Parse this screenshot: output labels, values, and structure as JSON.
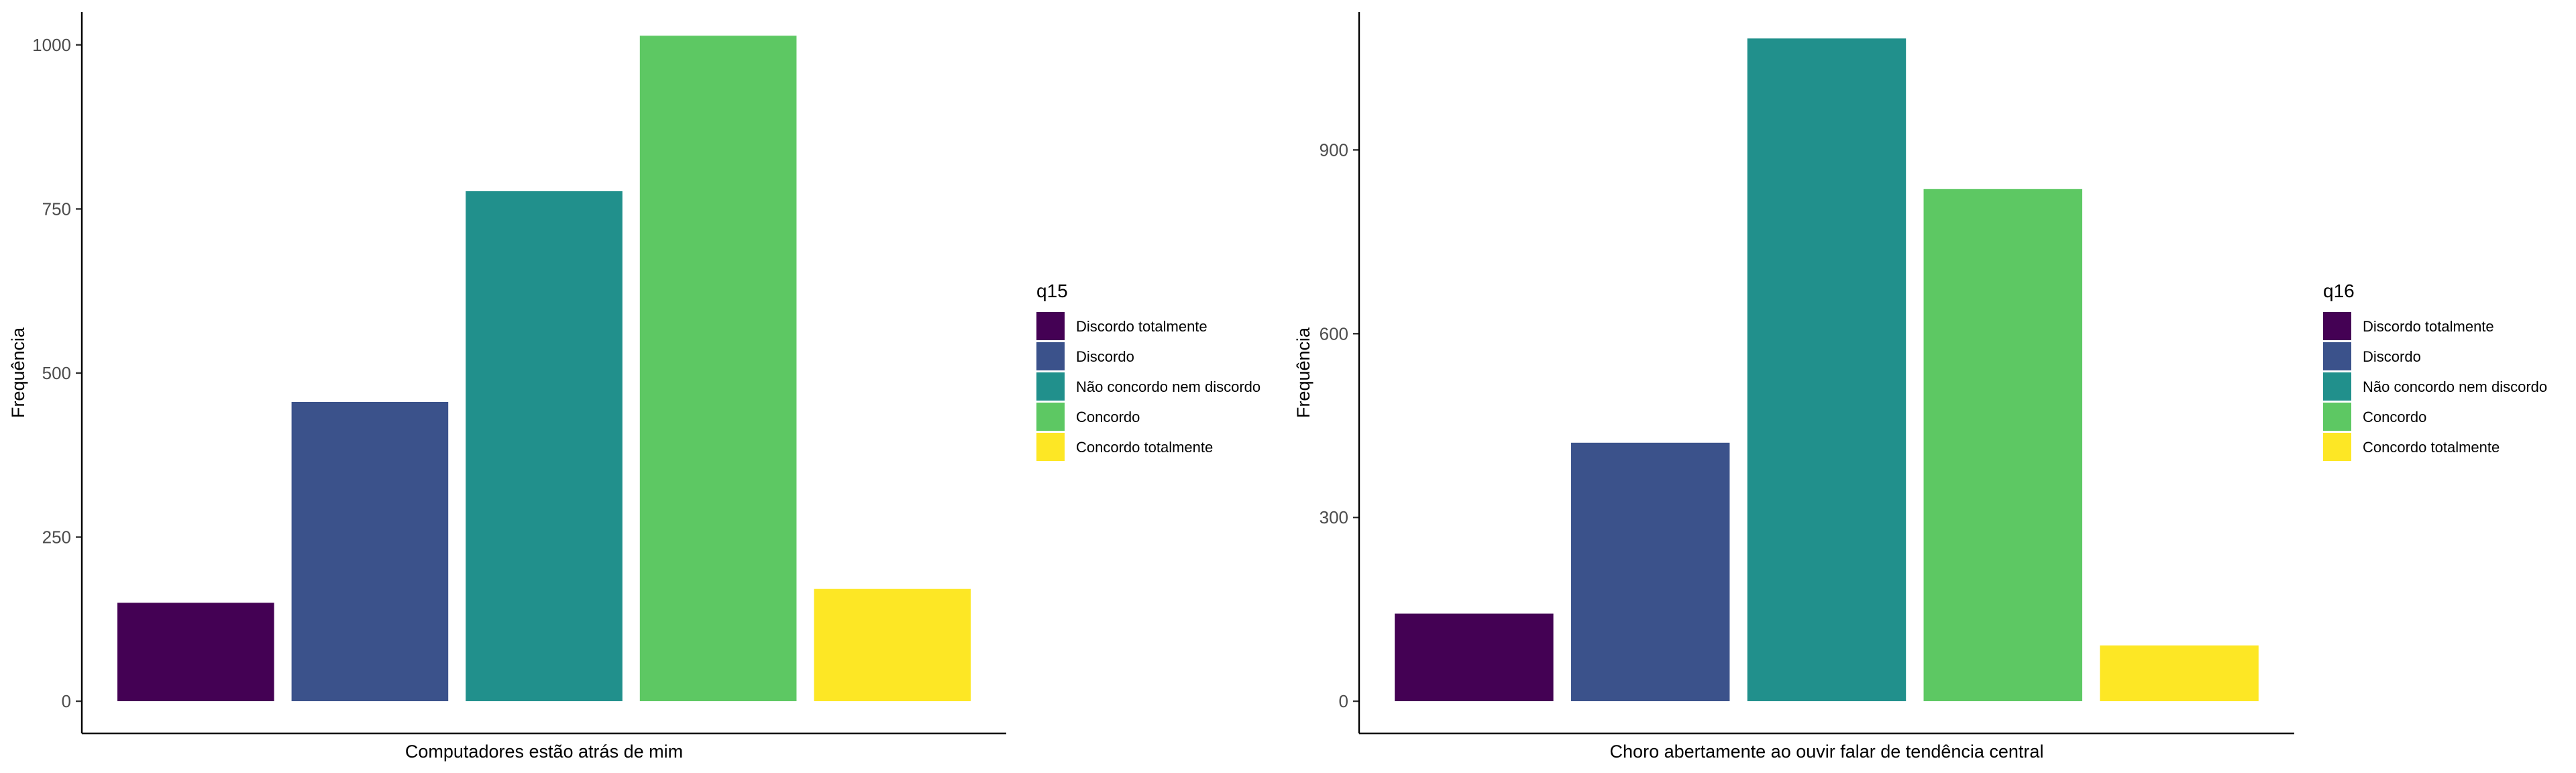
{
  "chart_data": [
    {
      "type": "bar",
      "categories": [
        "Discordo totalmente",
        "Discordo",
        "Não concordo nem discordo",
        "Concordo",
        "Concordo totalmente"
      ],
      "values": [
        150,
        456,
        777,
        1014,
        171
      ],
      "colors": [
        "#440154",
        "#3B528B",
        "#21908C",
        "#5DC863",
        "#FDE725"
      ],
      "xlabel": "Computadores estão atrás de mim",
      "ylabel": "Frequência",
      "ylim": [
        0,
        1050
      ],
      "yticks": [
        0,
        250,
        500,
        750,
        1000
      ],
      "legend": {
        "title": "q15",
        "position": "right",
        "entries": [
          "Discordo totalmente",
          "Discordo",
          "Não concordo nem discordo",
          "Concordo",
          "Concordo totalmente"
        ]
      },
      "grid": false
    },
    {
      "type": "bar",
      "categories": [
        "Discordo totalmente",
        "Discordo",
        "Não concordo nem discordo",
        "Concordo",
        "Concordo totalmente"
      ],
      "values": [
        143,
        422,
        1082,
        836,
        91
      ],
      "colors": [
        "#440154",
        "#3B528B",
        "#21908C",
        "#5DC863",
        "#FDE725"
      ],
      "xlabel": "Choro abertamente ao ouvir falar de tendência central",
      "ylabel": "Frequência",
      "ylim": [
        0,
        1125
      ],
      "yticks": [
        0,
        300,
        600,
        900
      ],
      "legend": {
        "title": "q16",
        "position": "right",
        "entries": [
          "Discordo totalmente",
          "Discordo",
          "Não concordo nem discordo",
          "Concordo",
          "Concordo totalmente"
        ]
      },
      "grid": false
    }
  ]
}
